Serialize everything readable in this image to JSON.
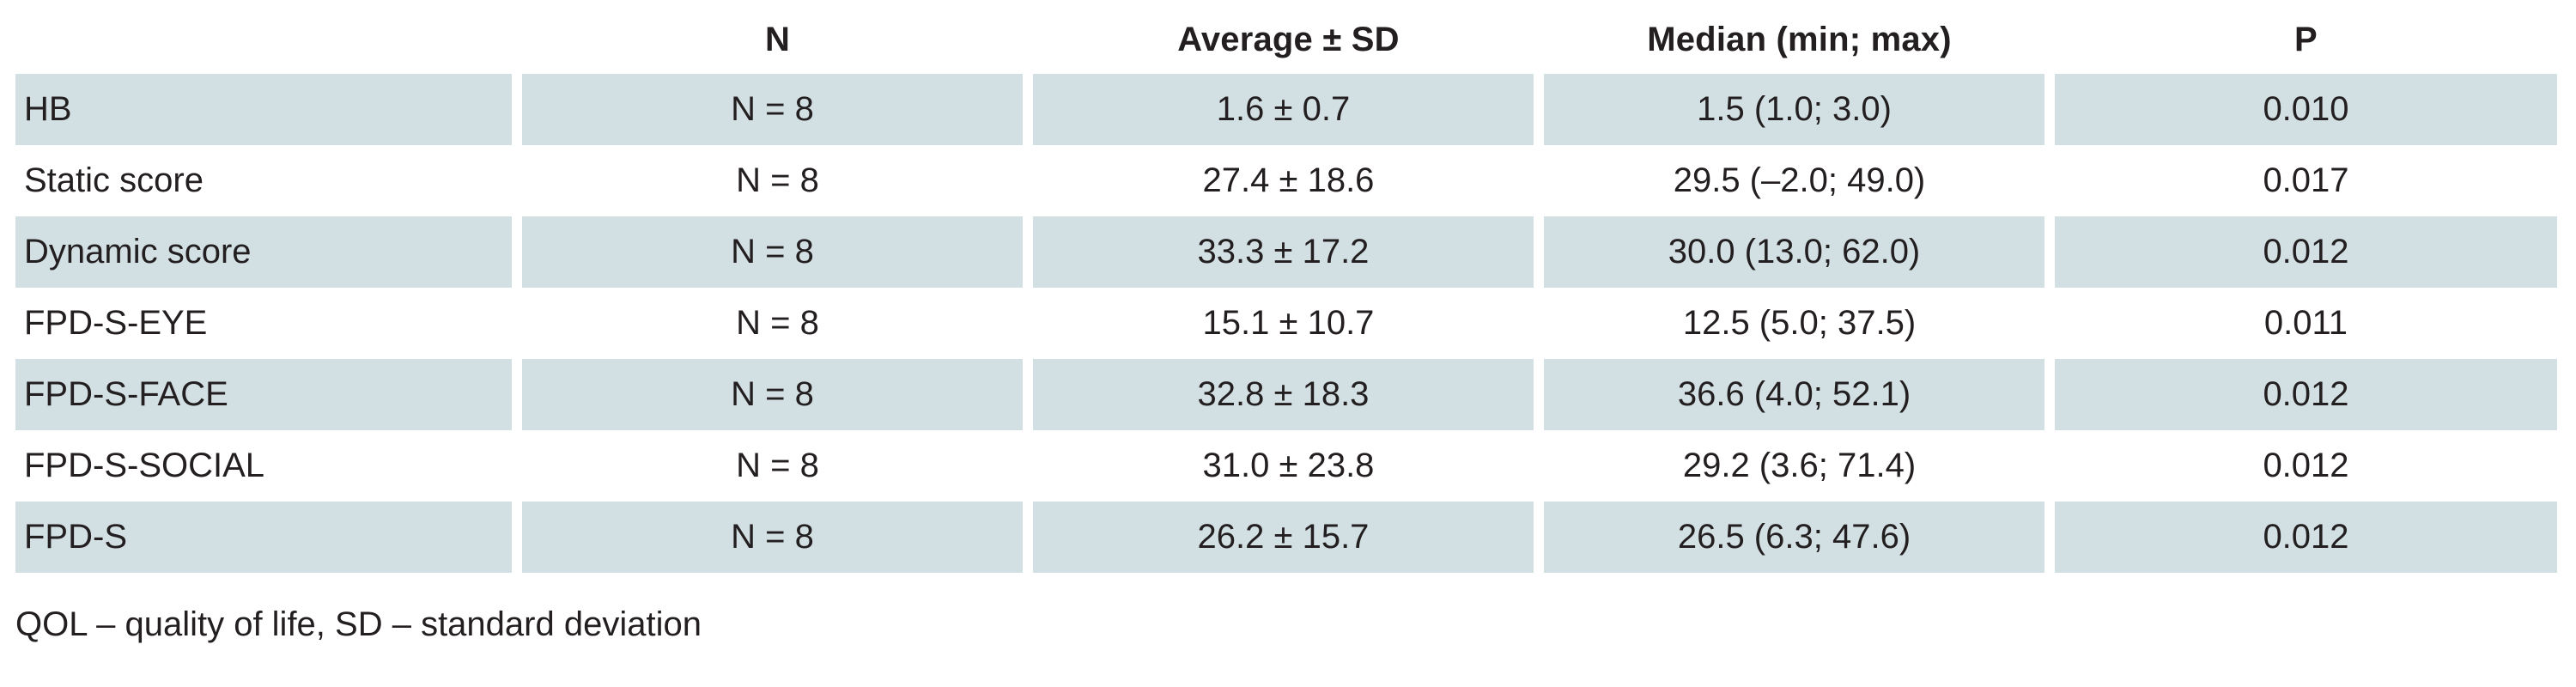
{
  "table": {
    "headers": [
      "",
      "N",
      "Average ± SD",
      "Median (min; max)",
      "P"
    ],
    "rows": [
      {
        "label": "HB",
        "n": "N = 8",
        "avg": "1.6 ± 0.7",
        "median": "1.5 (1.0; 3.0)",
        "p": "0.010",
        "shaded": true
      },
      {
        "label": "Static score",
        "n": "N = 8",
        "avg": "27.4 ± 18.6",
        "median": "29.5 (–2.0; 49.0)",
        "p": "0.017",
        "shaded": false
      },
      {
        "label": "Dynamic score",
        "n": "N = 8",
        "avg": "33.3 ± 17.2",
        "median": "30.0 (13.0; 62.0)",
        "p": "0.012",
        "shaded": true
      },
      {
        "label": "FPD-S-EYE",
        "n": "N = 8",
        "avg": "15.1 ± 10.7",
        "median": "12.5 (5.0; 37.5)",
        "p": "0.011",
        "shaded": false
      },
      {
        "label": "FPD-S-FACE",
        "n": "N = 8",
        "avg": "32.8 ± 18.3",
        "median": "36.6 (4.0; 52.1)",
        "p": "0.012",
        "shaded": true
      },
      {
        "label": "FPD-S-SOCIAL",
        "n": "N = 8",
        "avg": "31.0 ± 23.8",
        "median": "29.2 (3.6; 71.4)",
        "p": "0.012",
        "shaded": false
      },
      {
        "label": "FPD-S",
        "n": "N = 8",
        "avg": "26.2 ± 15.7",
        "median": "26.5 (6.3; 47.6)",
        "p": "0.012",
        "shaded": true
      }
    ]
  },
  "footnote": "QOL – quality of life,  SD – standard deviation",
  "colors": {
    "row_shade": "#d3e0e3",
    "text": "#231f20"
  }
}
